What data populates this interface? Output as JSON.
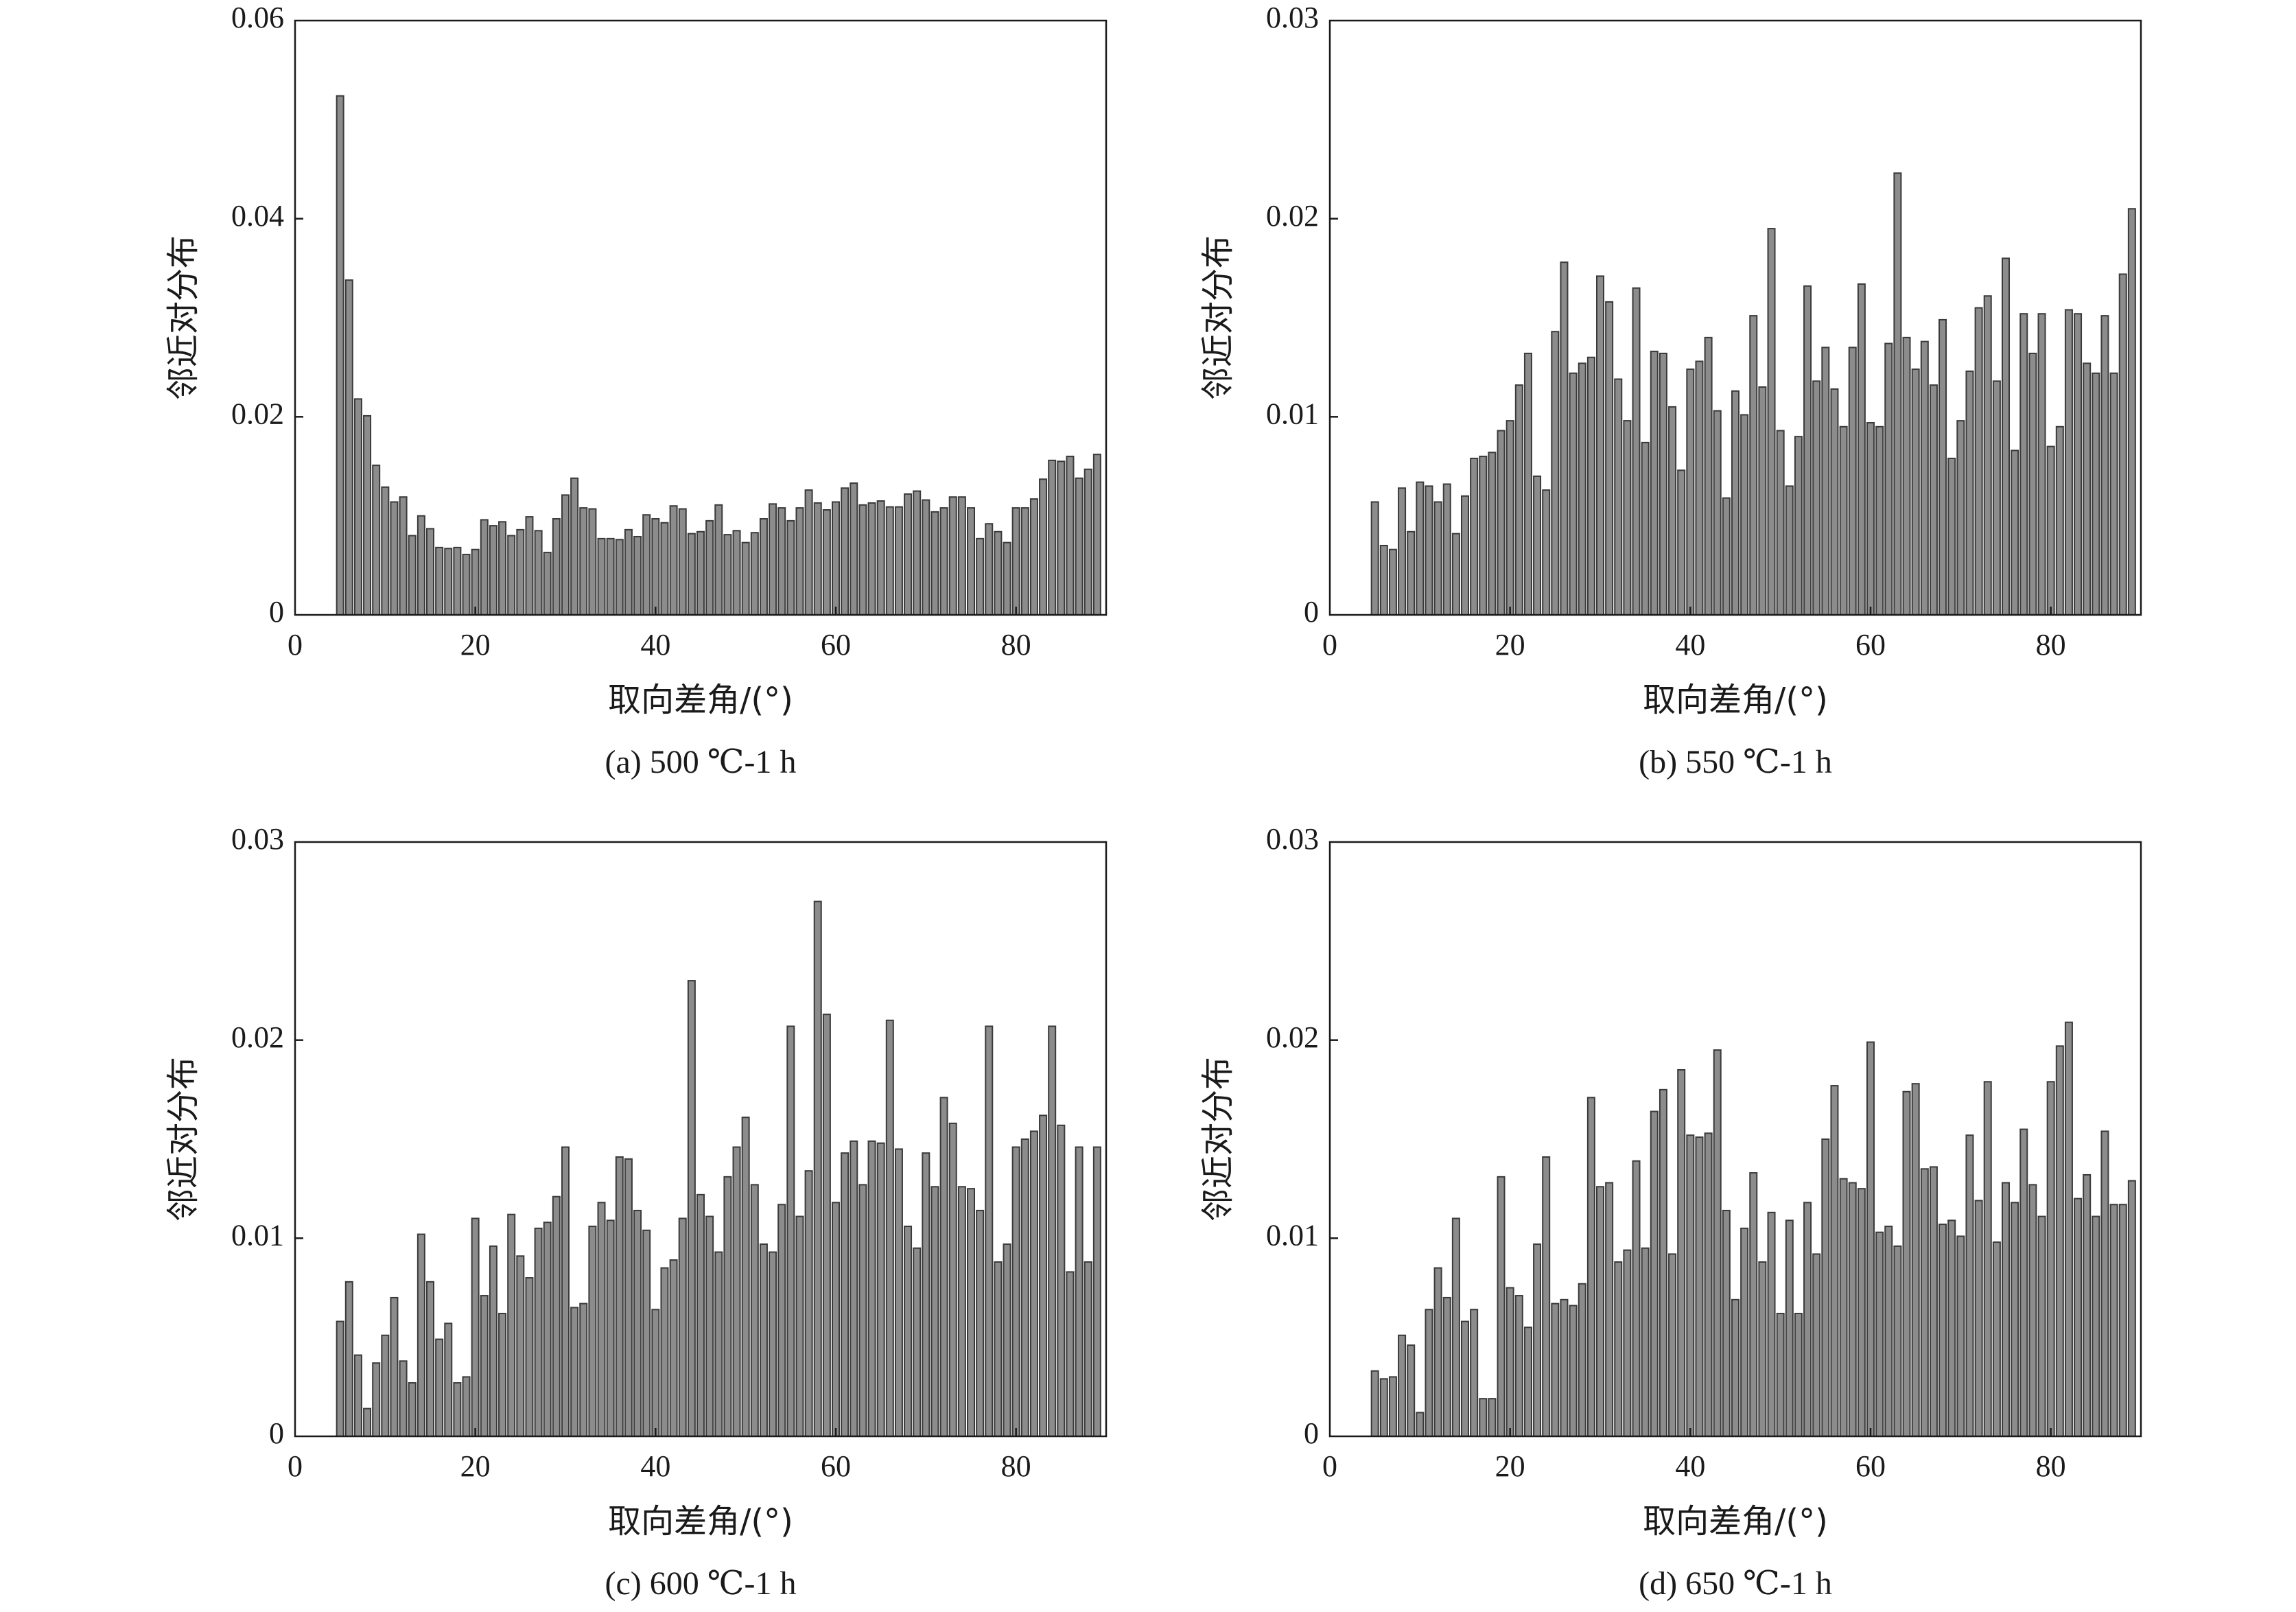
{
  "chart_data": [
    {
      "type": "bar",
      "caption": "(a) 500 ℃-1 h",
      "xlabel": "取向差角/(°)",
      "ylabel": "邻近对分布",
      "xlim": [
        0,
        90
      ],
      "ylim": [
        0,
        0.06
      ],
      "xticks": [
        "0",
        "20",
        "40",
        "60",
        "80"
      ],
      "yticks": [
        "0",
        "0.02",
        "0.04",
        "0.06"
      ],
      "x": [
        5,
        6,
        7,
        8,
        9,
        10,
        11,
        12,
        13,
        14,
        15,
        16,
        17,
        18,
        19,
        20,
        21,
        22,
        23,
        24,
        25,
        26,
        27,
        28,
        29,
        30,
        31,
        32,
        33,
        34,
        35,
        36,
        37,
        38,
        39,
        40,
        41,
        42,
        43,
        44,
        45,
        46,
        47,
        48,
        49,
        50,
        51,
        52,
        53,
        54,
        55,
        56,
        57,
        58,
        59,
        60,
        61,
        62,
        63,
        64,
        65,
        66,
        67,
        68,
        69,
        70,
        71,
        72,
        73,
        74,
        75,
        76,
        77,
        78,
        79,
        80,
        81,
        82,
        83,
        84,
        85,
        86,
        87,
        88,
        89
      ],
      "values": [
        0.0524,
        0.0338,
        0.0218,
        0.0201,
        0.0151,
        0.0129,
        0.0114,
        0.0119,
        0.008,
        0.01,
        0.0087,
        0.0068,
        0.0067,
        0.0068,
        0.0061,
        0.0066,
        0.0096,
        0.009,
        0.0094,
        0.008,
        0.0086,
        0.0099,
        0.0085,
        0.0063,
        0.0097,
        0.0121,
        0.0138,
        0.0108,
        0.0107,
        0.0077,
        0.0077,
        0.0076,
        0.0086,
        0.0079,
        0.0101,
        0.0097,
        0.0093,
        0.011,
        0.0107,
        0.0082,
        0.0084,
        0.0095,
        0.0111,
        0.0081,
        0.0085,
        0.0073,
        0.0083,
        0.0097,
        0.0112,
        0.0108,
        0.0095,
        0.0108,
        0.0126,
        0.0113,
        0.0106,
        0.0114,
        0.0128,
        0.0133,
        0.0111,
        0.0113,
        0.0115,
        0.0109,
        0.0109,
        0.0122,
        0.0125,
        0.0116,
        0.0104,
        0.0108,
        0.0119,
        0.0119,
        0.0108,
        0.0077,
        0.0092,
        0.0084,
        0.0073,
        0.0108,
        0.0108,
        0.0117,
        0.0137,
        0.0156,
        0.0155,
        0.016,
        0.0138,
        0.0147,
        0.0162
      ]
    },
    {
      "type": "bar",
      "caption": "(b) 550 ℃-1 h",
      "xlabel": "取向差角/(°)",
      "ylabel": "邻近对分布",
      "xlim": [
        0,
        90
      ],
      "ylim": [
        0,
        0.03
      ],
      "xticks": [
        "0",
        "20",
        "40",
        "60",
        "80"
      ],
      "yticks": [
        "0",
        "0.01",
        "0.02",
        "0.03"
      ],
      "x": [
        5,
        6,
        7,
        8,
        9,
        10,
        11,
        12,
        13,
        14,
        15,
        16,
        17,
        18,
        19,
        20,
        21,
        22,
        23,
        24,
        25,
        26,
        27,
        28,
        29,
        30,
        31,
        32,
        33,
        34,
        35,
        36,
        37,
        38,
        39,
        40,
        41,
        42,
        43,
        44,
        45,
        46,
        47,
        48,
        49,
        50,
        51,
        52,
        53,
        54,
        55,
        56,
        57,
        58,
        59,
        60,
        61,
        62,
        63,
        64,
        65,
        66,
        67,
        68,
        69,
        70,
        71,
        72,
        73,
        74,
        75,
        76,
        77,
        78,
        79,
        80,
        81,
        82,
        83,
        84,
        85,
        86,
        87,
        88,
        89
      ],
      "values": [
        0.0057,
        0.0035,
        0.0033,
        0.0064,
        0.0042,
        0.0067,
        0.0065,
        0.0057,
        0.0066,
        0.0041,
        0.006,
        0.0079,
        0.008,
        0.0082,
        0.0093,
        0.0098,
        0.0116,
        0.0132,
        0.007,
        0.0063,
        0.0143,
        0.0178,
        0.0122,
        0.0127,
        0.013,
        0.0171,
        0.0158,
        0.0119,
        0.0098,
        0.0165,
        0.0087,
        0.0133,
        0.0132,
        0.0105,
        0.0073,
        0.0124,
        0.0128,
        0.014,
        0.0103,
        0.0059,
        0.0113,
        0.0101,
        0.0151,
        0.0115,
        0.0195,
        0.0093,
        0.0065,
        0.009,
        0.0166,
        0.0118,
        0.0135,
        0.0114,
        0.0095,
        0.0135,
        0.0167,
        0.0097,
        0.0095,
        0.0137,
        0.0223,
        0.014,
        0.0124,
        0.0138,
        0.0116,
        0.0149,
        0.0079,
        0.0098,
        0.0123,
        0.0155,
        0.0161,
        0.0118,
        0.018,
        0.0083,
        0.0152,
        0.0132,
        0.0152,
        0.0085,
        0.0095,
        0.0154,
        0.0152,
        0.0127,
        0.0122,
        0.0151,
        0.0122,
        0.0172,
        0.0205
      ]
    },
    {
      "type": "bar",
      "caption": "(c) 600 ℃-1 h",
      "xlabel": "取向差角/(°)",
      "ylabel": "邻近对分布",
      "xlim": [
        0,
        90
      ],
      "ylim": [
        0,
        0.03
      ],
      "xticks": [
        "0",
        "20",
        "40",
        "60",
        "80"
      ],
      "yticks": [
        "0",
        "0.01",
        "0.02",
        "0.03"
      ],
      "x": [
        5,
        6,
        7,
        8,
        9,
        10,
        11,
        12,
        13,
        14,
        15,
        16,
        17,
        18,
        19,
        20,
        21,
        22,
        23,
        24,
        25,
        26,
        27,
        28,
        29,
        30,
        31,
        32,
        33,
        34,
        35,
        36,
        37,
        38,
        39,
        40,
        41,
        42,
        43,
        44,
        45,
        46,
        47,
        48,
        49,
        50,
        51,
        52,
        53,
        54,
        55,
        56,
        57,
        58,
        59,
        60,
        61,
        62,
        63,
        64,
        65,
        66,
        67,
        68,
        69,
        70,
        71,
        72,
        73,
        74,
        75,
        76,
        77,
        78,
        79,
        80,
        81,
        82,
        83,
        84,
        85,
        86,
        87,
        88,
        89
      ],
      "values": [
        0.0058,
        0.0078,
        0.0041,
        0.0014,
        0.0037,
        0.0051,
        0.007,
        0.0038,
        0.0027,
        0.0102,
        0.0078,
        0.0049,
        0.0057,
        0.0027,
        0.003,
        0.011,
        0.0071,
        0.0096,
        0.0062,
        0.0112,
        0.0091,
        0.008,
        0.0105,
        0.0108,
        0.0121,
        0.0146,
        0.0065,
        0.0067,
        0.0106,
        0.0118,
        0.0109,
        0.0141,
        0.014,
        0.0114,
        0.0104,
        0.0064,
        0.0085,
        0.0089,
        0.011,
        0.023,
        0.0122,
        0.0111,
        0.0093,
        0.0131,
        0.0146,
        0.0161,
        0.0127,
        0.0097,
        0.0093,
        0.0117,
        0.0207,
        0.0111,
        0.0134,
        0.027,
        0.0213,
        0.0118,
        0.0143,
        0.0149,
        0.0127,
        0.0149,
        0.0148,
        0.021,
        0.0145,
        0.0106,
        0.0095,
        0.0143,
        0.0126,
        0.0171,
        0.0158,
        0.0126,
        0.0125,
        0.0114,
        0.0207,
        0.0088,
        0.0097,
        0.0146,
        0.015,
        0.0154,
        0.0162,
        0.0207,
        0.0157,
        0.0083,
        0.0146,
        0.0088,
        0.0146
      ]
    },
    {
      "type": "bar",
      "caption": "(d) 650 ℃-1 h",
      "xlabel": "取向差角/(°)",
      "ylabel": "邻近对分布",
      "xlim": [
        0,
        90
      ],
      "ylim": [
        0,
        0.03
      ],
      "xticks": [
        "0",
        "20",
        "40",
        "60",
        "80"
      ],
      "yticks": [
        "0",
        "0.01",
        "0.02",
        "0.03"
      ],
      "x": [
        5,
        6,
        7,
        8,
        9,
        10,
        11,
        12,
        13,
        14,
        15,
        16,
        17,
        18,
        19,
        20,
        21,
        22,
        23,
        24,
        25,
        26,
        27,
        28,
        29,
        30,
        31,
        32,
        33,
        34,
        35,
        36,
        37,
        38,
        39,
        40,
        41,
        42,
        43,
        44,
        45,
        46,
        47,
        48,
        49,
        50,
        51,
        52,
        53,
        54,
        55,
        56,
        57,
        58,
        59,
        60,
        61,
        62,
        63,
        64,
        65,
        66,
        67,
        68,
        69,
        70,
        71,
        72,
        73,
        74,
        75,
        76,
        77,
        78,
        79,
        80,
        81,
        82,
        83,
        84,
        85,
        86,
        87,
        88,
        89
      ],
      "values": [
        0.0033,
        0.0029,
        0.003,
        0.0051,
        0.0046,
        0.0012,
        0.0064,
        0.0085,
        0.007,
        0.011,
        0.0058,
        0.0064,
        0.0019,
        0.0019,
        0.0131,
        0.0075,
        0.0071,
        0.0055,
        0.0097,
        0.0141,
        0.0067,
        0.0069,
        0.0066,
        0.0077,
        0.0171,
        0.0126,
        0.0128,
        0.0088,
        0.0094,
        0.0139,
        0.0095,
        0.0164,
        0.0175,
        0.0092,
        0.0185,
        0.0152,
        0.0151,
        0.0153,
        0.0195,
        0.0114,
        0.0069,
        0.0105,
        0.0133,
        0.0088,
        0.0113,
        0.0062,
        0.0109,
        0.0062,
        0.0118,
        0.0092,
        0.015,
        0.0177,
        0.013,
        0.0128,
        0.0125,
        0.0199,
        0.0103,
        0.0106,
        0.0096,
        0.0174,
        0.0178,
        0.0135,
        0.0136,
        0.0107,
        0.0109,
        0.0101,
        0.0152,
        0.0119,
        0.0179,
        0.0098,
        0.0128,
        0.0118,
        0.0155,
        0.0127,
        0.0111,
        0.0179,
        0.0197,
        0.0209,
        0.012,
        0.0132,
        0.0111,
        0.0154,
        0.0117,
        0.0117,
        0.0129
      ]
    }
  ]
}
